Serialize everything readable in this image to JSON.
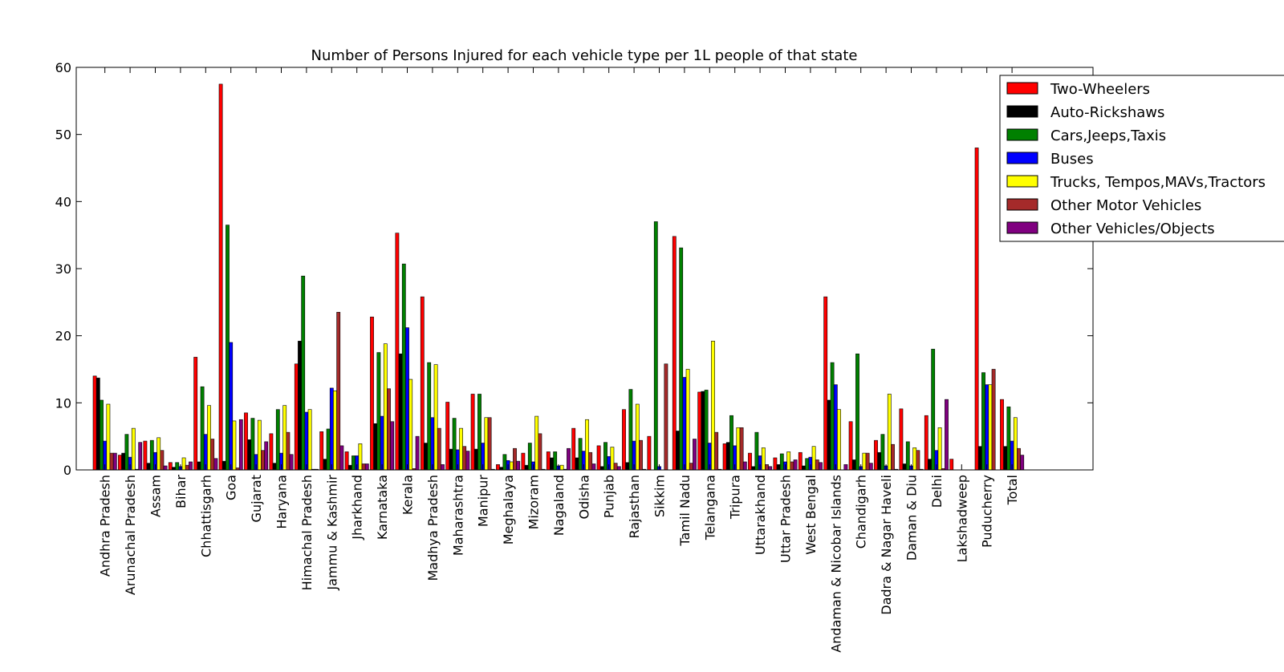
{
  "chart_data": {
    "type": "bar",
    "title": "Number of Persons Injured for each vehicle type per 1L people of that state",
    "xlabel": "",
    "ylabel": "",
    "ylim": [
      0,
      60
    ],
    "yticks": [
      0,
      10,
      20,
      30,
      40,
      50,
      60
    ],
    "legend_position": "top-right",
    "categories": [
      "Andhra Pradesh",
      "Arunachal Pradesh",
      "Assam",
      "Bihar",
      "Chhattisgarh",
      "Goa",
      "Gujarat",
      "Haryana",
      "Himachal Pradesh",
      "Jammu & Kashmir",
      "Jharkhand",
      "Karnataka",
      "Kerala",
      "Madhya Pradesh",
      "Maharashtra",
      "Manipur",
      "Meghalaya",
      "Mizoram",
      "Nagaland",
      "Odisha",
      "Punjab",
      "Rajasthan",
      "Sikkim",
      "Tamil Nadu",
      "Telangana",
      "Tripura",
      "Uttarakhand",
      "Uttar Pradesh",
      "West Bengal",
      "Andaman & Nicobar Islands",
      "Chandigarh",
      "Dadra & Nagar Haveli",
      "Daman & Diu",
      "Delhi",
      "Lakshadweep",
      "Puducherry",
      "Total"
    ],
    "series": [
      {
        "name": "Two-Wheelers",
        "color": "#ff0000",
        "values": [
          14.0,
          2.2,
          4.3,
          1.1,
          16.8,
          57.5,
          8.5,
          5.4,
          15.8,
          5.7,
          2.7,
          22.8,
          35.3,
          25.8,
          10.1,
          11.3,
          0.8,
          2.5,
          2.7,
          6.2,
          3.6,
          9.0,
          5.0,
          34.8,
          11.6,
          3.9,
          2.5,
          1.8,
          2.6,
          25.8,
          7.2,
          4.4,
          9.1,
          8.1,
          1.6,
          48.0,
          10.5
        ]
      },
      {
        "name": "Auto-Rickshaws",
        "color": "#000000",
        "values": [
          13.7,
          2.5,
          1.0,
          0.4,
          1.2,
          1.3,
          4.5,
          1.0,
          19.2,
          1.6,
          0.7,
          6.9,
          17.3,
          4.0,
          3.1,
          3.1,
          0.4,
          0.7,
          1.8,
          1.8,
          0.5,
          1.1,
          0.0,
          5.8,
          11.7,
          4.1,
          0.5,
          0.8,
          0.6,
          10.4,
          1.5,
          2.6,
          0.9,
          1.6,
          0.0,
          3.5,
          3.5
        ]
      },
      {
        "name": "Cars,Jeeps,Taxis",
        "color": "#008000",
        "values": [
          10.4,
          5.3,
          4.4,
          1.1,
          12.4,
          36.5,
          7.7,
          9.0,
          28.9,
          6.1,
          2.1,
          17.5,
          30.7,
          16.0,
          7.7,
          11.3,
          2.3,
          4.0,
          2.7,
          4.7,
          4.1,
          12.0,
          37.0,
          33.1,
          11.9,
          8.1,
          5.6,
          2.4,
          1.7,
          16.0,
          17.3,
          5.3,
          4.2,
          18.0,
          0.0,
          14.5,
          9.4
        ]
      },
      {
        "name": "Buses",
        "color": "#0000ff",
        "values": [
          4.3,
          1.9,
          2.6,
          0.5,
          5.3,
          19.0,
          2.3,
          2.5,
          8.6,
          12.2,
          2.1,
          8.0,
          21.2,
          7.8,
          3.0,
          4.0,
          1.4,
          1.2,
          0.6,
          2.8,
          2.0,
          4.3,
          0.5,
          13.8,
          4.0,
          3.6,
          2.1,
          1.2,
          1.9,
          12.7,
          0.5,
          0.6,
          0.6,
          2.9,
          0.0,
          12.7,
          4.3
        ]
      },
      {
        "name": "Trucks, Tempos,MAVs,Tractors",
        "color": "#ffff00",
        "values": [
          9.8,
          6.2,
          4.8,
          1.8,
          9.6,
          7.3,
          7.4,
          9.6,
          9.0,
          11.8,
          3.9,
          18.8,
          13.5,
          15.7,
          6.2,
          7.8,
          1.2,
          8.0,
          0.7,
          7.5,
          3.4,
          9.8,
          0.0,
          15.0,
          19.2,
          6.3,
          3.3,
          2.7,
          3.5,
          9.0,
          2.5,
          11.3,
          3.3,
          6.3,
          0.0,
          12.7,
          7.8
        ]
      },
      {
        "name": "Other Motor Vehicles",
        "color": "#a52a2a",
        "values": [
          2.5,
          0.1,
          2.9,
          0.7,
          4.6,
          0.3,
          2.9,
          5.6,
          0.1,
          23.5,
          0.9,
          12.1,
          0.2,
          6.2,
          3.5,
          7.8,
          3.2,
          5.4,
          0.1,
          2.6,
          1.0,
          4.4,
          15.8,
          1.0,
          5.6,
          6.3,
          0.8,
          1.2,
          1.5,
          0.0,
          2.5,
          3.8,
          2.9,
          0.2,
          0.0,
          15.0,
          3.2
        ]
      },
      {
        "name": "Other Vehicles/Objects",
        "color": "#800080",
        "values": [
          2.5,
          4.1,
          0.6,
          1.2,
          1.7,
          7.5,
          4.2,
          2.3,
          0.1,
          3.6,
          0.9,
          7.2,
          5.0,
          0.8,
          2.8,
          0.1,
          1.3,
          0.1,
          3.2,
          0.9,
          0.5,
          0.1,
          0.0,
          4.6,
          0.1,
          1.2,
          0.5,
          1.5,
          1.1,
          0.8,
          1.0,
          0.1,
          0.1,
          10.5,
          0.0,
          0.0,
          2.2
        ]
      }
    ]
  }
}
